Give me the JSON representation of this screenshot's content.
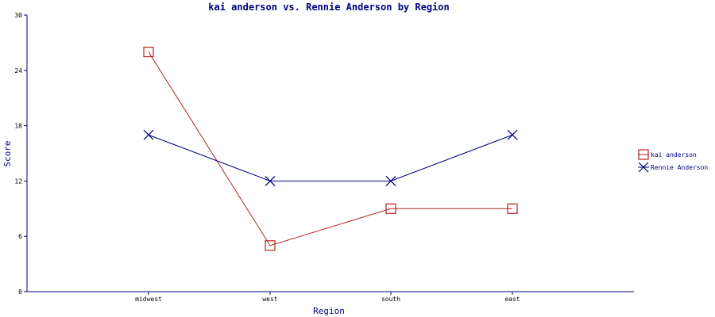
{
  "chart_data": {
    "type": "line",
    "title": "kai anderson vs. Rennie Anderson by Region",
    "xlabel": "Region",
    "ylabel": "Score",
    "categories": [
      "midwest",
      "west",
      "south",
      "east"
    ],
    "ylim": [
      0,
      30
    ],
    "yticks": [
      "0",
      "6",
      "12",
      "18",
      "24",
      "30"
    ],
    "grid": false,
    "legend_position": "right",
    "series": [
      {
        "name": "kai anderson",
        "values": [
          26,
          5,
          9,
          9
        ],
        "color": "#b22222",
        "marker": "square"
      },
      {
        "name": "Rennie Anderson",
        "values": [
          17,
          12,
          12,
          17
        ],
        "color": "#000080",
        "marker": "x"
      }
    ]
  }
}
